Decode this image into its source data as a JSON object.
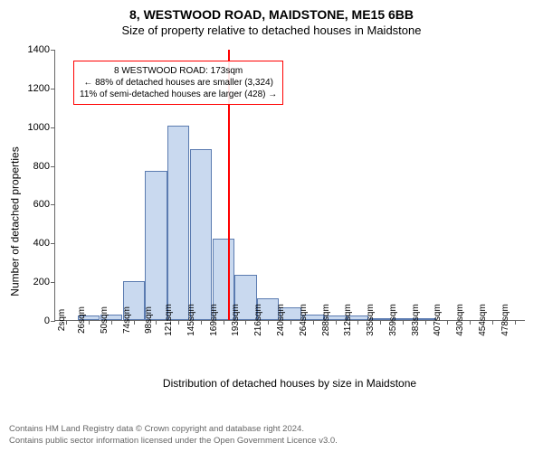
{
  "title_main": "8, WESTWOOD ROAD, MAIDSTONE, ME15 6BB",
  "title_sub": "Size of property relative to detached houses in Maidstone",
  "ylabel": "Number of detached properties",
  "xlabel": "Distribution of detached houses by size in Maidstone",
  "chart": {
    "type": "bar",
    "ylim": [
      0,
      1400
    ],
    "ytick_step": 200,
    "bar_fill": "#c9d9ef",
    "bar_stroke": "#5b7bb0",
    "background": "#ffffff",
    "grid_color": "#666666",
    "axis_color": "#666666",
    "tick_fontsize": 10,
    "label_fontsize": 12,
    "title_fontsize": 14,
    "annot_fontsize": 10,
    "reference_line_color": "#ff0000",
    "annotation_border_color": "#ff0000",
    "bars": [
      {
        "x": "2sqm",
        "y": 0
      },
      {
        "x": "26sqm",
        "y": 22
      },
      {
        "x": "50sqm",
        "y": 30
      },
      {
        "x": "74sqm",
        "y": 200
      },
      {
        "x": "98sqm",
        "y": 770
      },
      {
        "x": "121sqm",
        "y": 1005
      },
      {
        "x": "145sqm",
        "y": 880
      },
      {
        "x": "169sqm",
        "y": 420
      },
      {
        "x": "193sqm",
        "y": 235
      },
      {
        "x": "216sqm",
        "y": 110
      },
      {
        "x": "240sqm",
        "y": 65
      },
      {
        "x": "264sqm",
        "y": 30
      },
      {
        "x": "288sqm",
        "y": 25
      },
      {
        "x": "312sqm",
        "y": 22
      },
      {
        "x": "335sqm",
        "y": 5
      },
      {
        "x": "359sqm",
        "y": 2
      },
      {
        "x": "383sqm",
        "y": 1
      },
      {
        "x": "407sqm",
        "y": 0
      },
      {
        "x": "430sqm",
        "y": 0
      },
      {
        "x": "454sqm",
        "y": 0
      },
      {
        "x": "478sqm",
        "y": 0
      }
    ],
    "reference_x_index": 7.2,
    "annotation": {
      "line1": "8 WESTWOOD ROAD: 173sqm",
      "line2": "← 88% of detached houses are smaller (3,324)",
      "line3": "11% of semi-detached houses are larger (428) →"
    }
  },
  "attribution": {
    "line1": "Contains HM Land Registry data © Crown copyright and database right 2024.",
    "line2": "Contains public sector information licensed under the Open Government Licence v3.0."
  }
}
